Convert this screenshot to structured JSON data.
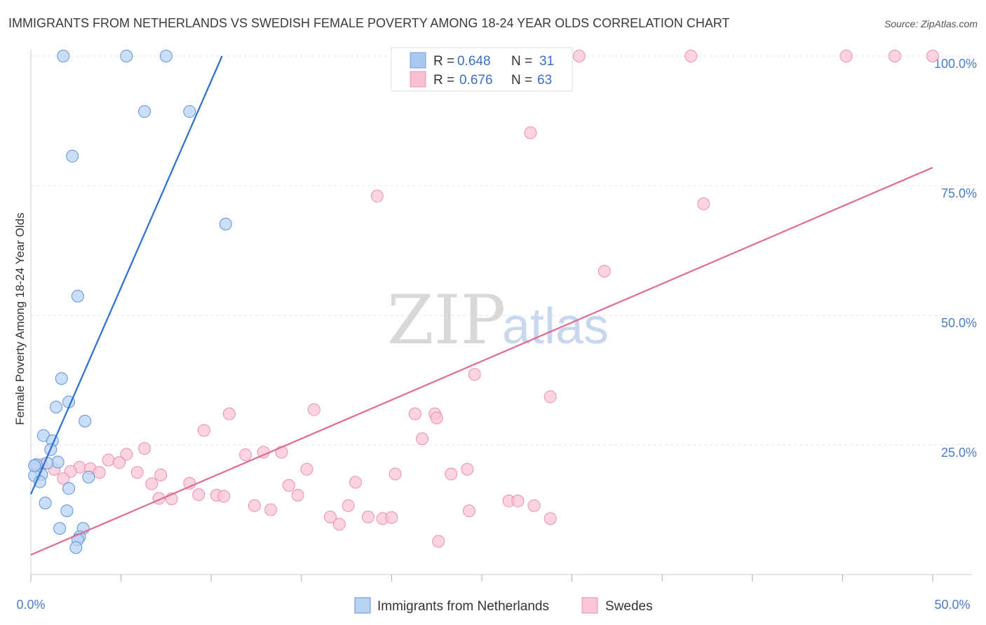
{
  "chart_data": {
    "type": "scatter",
    "title": "IMMIGRANTS FROM NETHERLANDS VS SWEDISH FEMALE POVERTY AMONG 18-24 YEAR OLDS CORRELATION CHART",
    "source": "Source: ZipAtlas.com",
    "watermark": {
      "part1": "ZIP",
      "part2": "atlas"
    },
    "ylabel": "Female Poverty Among 18-24 Year Olds",
    "xlim": [
      0,
      50
    ],
    "ylim": [
      0,
      100
    ],
    "x_tick_labels": [
      "0.0%",
      "50.0%"
    ],
    "y_ticks": [
      {
        "value": 25,
        "label": "25.0%"
      },
      {
        "value": 50,
        "label": "50.0%"
      },
      {
        "value": 75,
        "label": "75.0%"
      },
      {
        "value": 100,
        "label": "100.0%"
      }
    ],
    "legend_box": {
      "r_label": "R =",
      "n_label": "N =",
      "rows": [
        {
          "r": "0.648",
          "n": "31",
          "color": "#a9c8f0",
          "stroke": "#6d9ee0"
        },
        {
          "r": "0.676",
          "n": "63",
          "color": "#f8c1d2",
          "stroke": "#ec93b0"
        }
      ]
    },
    "series": [
      {
        "name": "Immigrants from Netherlands",
        "color": "#b8d3f4",
        "stroke": "#5f93d8",
        "line_color": "#2a6fcf",
        "trendline": {
          "x0": 0,
          "y0": 15.5,
          "x1": 10.6,
          "y1": 100
        },
        "points": [
          [
            1.8,
            100
          ],
          [
            5.3,
            100
          ],
          [
            7.5,
            100
          ],
          [
            6.3,
            89.3
          ],
          [
            8.8,
            89.3
          ],
          [
            2.3,
            80.7
          ],
          [
            10.8,
            67.6
          ],
          [
            2.6,
            53.7
          ],
          [
            1.7,
            37.8
          ],
          [
            2.1,
            33.3
          ],
          [
            1.4,
            32.3
          ],
          [
            3.0,
            29.6
          ],
          [
            0.7,
            26.8
          ],
          [
            1.2,
            25.8
          ],
          [
            1.1,
            24.1
          ],
          [
            1.5,
            21.7
          ],
          [
            0.9,
            21.5
          ],
          [
            0.3,
            21.2
          ],
          [
            0.6,
            19.3
          ],
          [
            0.2,
            19.1
          ],
          [
            3.2,
            18.8
          ],
          [
            0.5,
            17.9
          ],
          [
            2.1,
            16.6
          ],
          [
            0.8,
            13.8
          ],
          [
            2.0,
            12.3
          ],
          [
            1.6,
            8.9
          ],
          [
            2.9,
            8.9
          ],
          [
            2.7,
            7.3
          ],
          [
            2.6,
            6.7
          ],
          [
            2.5,
            5.2
          ],
          [
            0.2,
            21.0
          ]
        ]
      },
      {
        "name": "Swedes",
        "color": "#f9c6d5",
        "stroke": "#eb8fac",
        "line_color": "#e06a94",
        "trendline": {
          "x0": 0,
          "y0": 3.8,
          "x1": 50,
          "y1": 78.5
        },
        "points": [
          [
            30.4,
            100
          ],
          [
            36.6,
            100
          ],
          [
            45.2,
            100
          ],
          [
            47.9,
            100
          ],
          [
            50.0,
            100
          ],
          [
            27.7,
            85.2
          ],
          [
            19.2,
            73.0
          ],
          [
            37.3,
            71.5
          ],
          [
            31.8,
            58.5
          ],
          [
            24.6,
            38.6
          ],
          [
            28.8,
            34.3
          ],
          [
            15.7,
            31.8
          ],
          [
            11.0,
            31.0
          ],
          [
            21.3,
            31.0
          ],
          [
            22.4,
            31.0
          ],
          [
            22.5,
            30.2
          ],
          [
            9.6,
            27.8
          ],
          [
            21.7,
            26.2
          ],
          [
            6.3,
            24.3
          ],
          [
            5.3,
            23.2
          ],
          [
            11.9,
            23.1
          ],
          [
            12.9,
            23.6
          ],
          [
            13.9,
            23.6
          ],
          [
            4.3,
            22.1
          ],
          [
            4.9,
            21.6
          ],
          [
            0.6,
            21.2
          ],
          [
            2.7,
            20.7
          ],
          [
            1.3,
            20.3
          ],
          [
            3.3,
            20.4
          ],
          [
            2.2,
            19.9
          ],
          [
            3.8,
            19.7
          ],
          [
            5.9,
            19.7
          ],
          [
            15.3,
            20.3
          ],
          [
            20.2,
            19.4
          ],
          [
            23.3,
            19.4
          ],
          [
            24.2,
            20.3
          ],
          [
            7.2,
            19.2
          ],
          [
            1.8,
            18.5
          ],
          [
            8.8,
            17.6
          ],
          [
            6.7,
            17.5
          ],
          [
            14.3,
            17.2
          ],
          [
            18.0,
            17.8
          ],
          [
            9.3,
            15.4
          ],
          [
            10.3,
            15.3
          ],
          [
            10.7,
            15.1
          ],
          [
            14.8,
            15.3
          ],
          [
            7.8,
            14.6
          ],
          [
            7.1,
            14.7
          ],
          [
            26.5,
            14.2
          ],
          [
            27.0,
            14.2
          ],
          [
            12.4,
            13.3
          ],
          [
            17.6,
            13.3
          ],
          [
            27.9,
            13.3
          ],
          [
            13.3,
            12.5
          ],
          [
            24.3,
            12.3
          ],
          [
            16.6,
            11.1
          ],
          [
            18.7,
            11.1
          ],
          [
            19.5,
            10.8
          ],
          [
            20.0,
            11.0
          ],
          [
            28.8,
            10.8
          ],
          [
            17.1,
            9.7
          ],
          [
            22.6,
            6.4
          ],
          [
            0.4,
            20.5
          ]
        ]
      }
    ]
  }
}
